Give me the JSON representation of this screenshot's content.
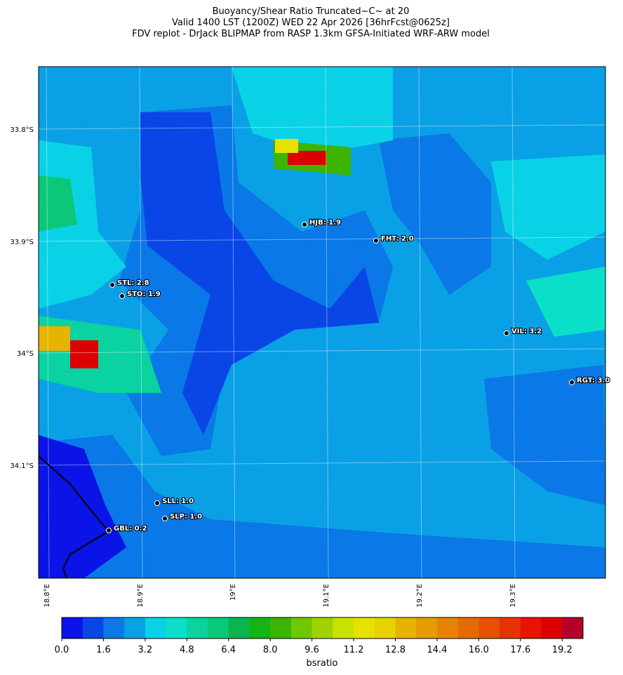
{
  "header": {
    "title": "Buoyancy/Shear Ratio Truncated~C~    at 20",
    "subtitle": "Valid 1400 LST (1200Z) WED 22 Apr 2026 [36hrFcst@0625z]",
    "source": "FDV replot - DrJack BLIPMAP from RASP 1.3km GFSA-Initiated WRF-ARW model"
  },
  "map": {
    "lat_labels": [
      "33.8°S",
      "33.9°S",
      "34°S",
      "34.1°S"
    ],
    "lon_labels": [
      "18.8°E",
      "18.9°E",
      "19°E",
      "19.1°E",
      "19.2°E",
      "19.3°E"
    ],
    "stations": [
      "HJB: 1.9",
      "FHT: 2.0",
      "STL: 2.8",
      "STO: 1.9",
      "VIL: 3.2",
      "RGT: 3.0",
      "SLL: 1.0",
      "SLP: 1.0",
      "GBL: 0.2"
    ]
  },
  "colorbar": {
    "label": "bsratio",
    "lim": [
      0,
      20
    ],
    "ticks": [
      {
        "value": 0,
        "label": "0.0"
      },
      {
        "value": 1.6,
        "label": "1.6"
      },
      {
        "value": 3.2,
        "label": "3.2"
      },
      {
        "value": 4.8,
        "label": "4.8"
      },
      {
        "value": 6.4,
        "label": "6.4"
      },
      {
        "value": 8,
        "label": "8.0"
      },
      {
        "value": 9.6,
        "label": "9.6"
      },
      {
        "value": 11.2,
        "label": "11.2"
      },
      {
        "value": 12.8,
        "label": "12.8"
      },
      {
        "value": 14.4,
        "label": "14.4"
      },
      {
        "value": 16,
        "label": "16.0"
      },
      {
        "value": 17.6,
        "label": "17.6"
      },
      {
        "value": 19.2,
        "label": "19.2"
      }
    ],
    "colors": [
      "#0a14e6",
      "#0a46e6",
      "#0a78e6",
      "#0aa0e6",
      "#0ad2e6",
      "#0ae0c8",
      "#0ad2a0",
      "#0ac878",
      "#0ab450",
      "#14b414",
      "#3cb400",
      "#6ec800",
      "#a0d200",
      "#c8e100",
      "#e6e100",
      "#e6d200",
      "#e6b400",
      "#e69b00",
      "#e68200",
      "#e66900",
      "#e65000",
      "#e63200",
      "#e61400",
      "#dc0000",
      "#b4002a"
    ]
  }
}
